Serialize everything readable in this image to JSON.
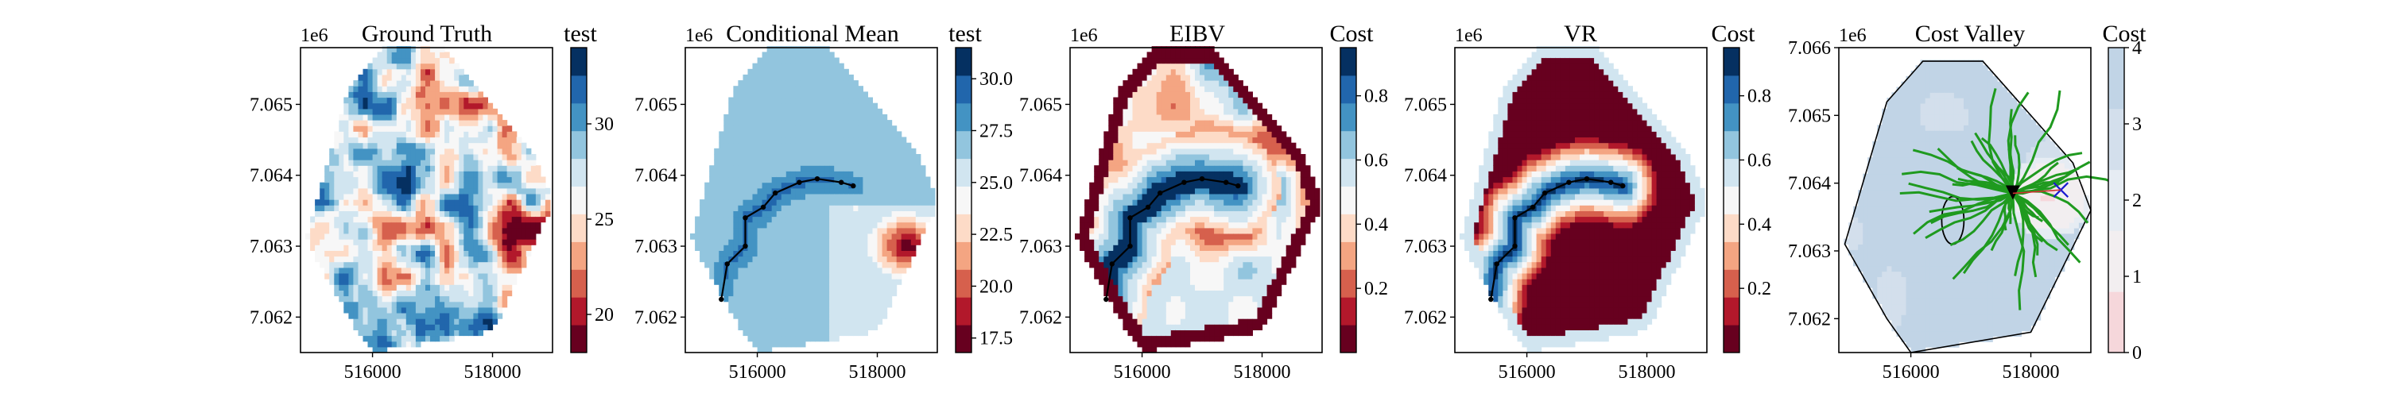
{
  "chart_data": [
    {
      "type": "heatmap",
      "title": "Ground Truth",
      "colorbar_label": "test",
      "colormap": "RdBu",
      "colorbar_ticks": [
        "20",
        "25",
        "30"
      ],
      "xticks": [
        "516000",
        "518000"
      ],
      "yticks": [
        "7.062",
        "7.063",
        "7.064",
        "7.065"
      ],
      "y_offset_label": "1e6",
      "xlim": [
        514800,
        519000
      ],
      "ylim": [
        7061500,
        7065800
      ],
      "clim": [
        18,
        34
      ]
    },
    {
      "type": "heatmap",
      "title": "Conditional Mean",
      "colorbar_label": "test",
      "colormap": "RdBu",
      "colorbar_ticks": [
        "17.5",
        "20.0",
        "22.5",
        "25.0",
        "27.5",
        "30.0"
      ],
      "xticks": [
        "516000",
        "518000"
      ],
      "yticks": [
        "7.062",
        "7.063",
        "7.064",
        "7.065"
      ],
      "y_offset_label": "1e6",
      "xlim": [
        514800,
        519000
      ],
      "ylim": [
        7061500,
        7065800
      ],
      "clim": [
        16.8,
        31.5
      ],
      "path": [
        [
          515400,
          7062250
        ],
        [
          515500,
          7062750
        ],
        [
          515800,
          7063000
        ],
        [
          515800,
          7063400
        ],
        [
          516100,
          7063550
        ],
        [
          516300,
          7063750
        ],
        [
          516700,
          7063900
        ],
        [
          517000,
          7063950
        ],
        [
          517400,
          7063900
        ],
        [
          517600,
          7063850
        ]
      ]
    },
    {
      "type": "heatmap",
      "title": "EIBV",
      "colorbar_label": "Cost",
      "colormap": "RdBu",
      "colorbar_ticks": [
        "0.2",
        "0.4",
        "0.6",
        "0.8"
      ],
      "xticks": [
        "516000",
        "518000"
      ],
      "yticks": [
        "7.062",
        "7.063",
        "7.064",
        "7.065"
      ],
      "y_offset_label": "1e6",
      "xlim": [
        514800,
        519000
      ],
      "ylim": [
        7061500,
        7065800
      ],
      "clim": [
        0,
        0.95
      ],
      "path": [
        [
          515400,
          7062250
        ],
        [
          515500,
          7062750
        ],
        [
          515800,
          7063000
        ],
        [
          515800,
          7063400
        ],
        [
          516100,
          7063550
        ],
        [
          516300,
          7063750
        ],
        [
          516700,
          7063900
        ],
        [
          517000,
          7063950
        ],
        [
          517400,
          7063900
        ],
        [
          517600,
          7063850
        ]
      ]
    },
    {
      "type": "heatmap",
      "title": "VR",
      "colorbar_label": "Cost",
      "colormap": "RdBu",
      "colorbar_ticks": [
        "0.2",
        "0.4",
        "0.6",
        "0.8"
      ],
      "xticks": [
        "516000",
        "518000"
      ],
      "yticks": [
        "7.062",
        "7.063",
        "7.064",
        "7.065"
      ],
      "y_offset_label": "1e6",
      "xlim": [
        514800,
        519000
      ],
      "ylim": [
        7061500,
        7065800
      ],
      "clim": [
        0,
        0.95
      ],
      "path": [
        [
          515400,
          7062250
        ],
        [
          515500,
          7062750
        ],
        [
          515800,
          7063000
        ],
        [
          515800,
          7063400
        ],
        [
          516100,
          7063550
        ],
        [
          516300,
          7063750
        ],
        [
          516700,
          7063900
        ],
        [
          517000,
          7063950
        ],
        [
          517400,
          7063900
        ],
        [
          517600,
          7063850
        ]
      ]
    },
    {
      "type": "heatmap",
      "title": "Cost Valley",
      "colorbar_label": "Cost",
      "colormap": "RdBu",
      "colorbar_ticks": [
        "0",
        "1",
        "2",
        "3",
        "4"
      ],
      "xticks": [
        "516000",
        "518000"
      ],
      "yticks": [
        "7.062",
        "7.063",
        "7.064",
        "7.065",
        "7.066"
      ],
      "y_offset_label": "1e6",
      "xlim": [
        514800,
        519000
      ],
      "ylim": [
        7061500,
        7066000
      ],
      "clim": [
        0,
        4
      ],
      "current_location": [
        517700,
        7063850
      ],
      "target_location": [
        518500,
        7063900
      ]
    }
  ]
}
